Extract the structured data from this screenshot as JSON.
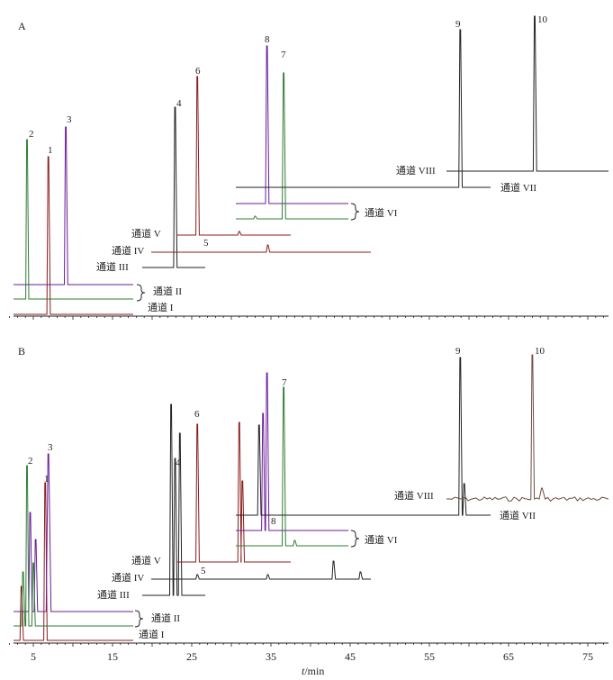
{
  "figure": {
    "xlabel_italic": "t",
    "xlabel_rest": "/min"
  },
  "chart_data": [
    {
      "type": "line",
      "panel": "A",
      "channels": [
        {
          "label": "通道 I",
          "channel": "I",
          "x_offset": 0,
          "baseline": 0.0,
          "color": "#8b1c1c",
          "peaks": [
            {
              "id": "1",
              "rt": 6.9,
              "height": 1.0
            }
          ]
        },
        {
          "label": "通道 II",
          "channel": "II",
          "x_offset": 0,
          "baseline": 0.5,
          "color": "#8b1c1c",
          "peaks": [
            {
              "id": "3",
              "rt": 9.1,
              "height": 1.0
            }
          ],
          "group": "A1"
        },
        {
          "label": "通道 II",
          "channel": "II",
          "x_offset": 0,
          "baseline": 0.32,
          "color": "#2e7d32",
          "peaks": [
            {
              "id": "2",
              "rt": 4.2,
              "height": 1.0
            }
          ],
          "group": "A1"
        },
        {
          "label": "通道 III",
          "channel": "III",
          "x_offset": 0,
          "baseline": 0.0,
          "color": "#222222",
          "peaks": [
            {
              "id": "4",
              "rt": 22.9,
              "height": 1.0
            }
          ]
        },
        {
          "label": "通道 IV",
          "channel": "IV",
          "x_offset": 0,
          "baseline": 0.0,
          "color": "#8b1c1c",
          "peaks": [
            {
              "id": "5",
              "rt": 34.6,
              "height": 0.05
            }
          ]
        },
        {
          "label": "通道 V",
          "channel": "V",
          "x_offset": 0,
          "baseline": 0.0,
          "color": "#8b1c1c",
          "peaks": [
            {
              "id": "6",
              "rt": 25.7,
              "height": 1.0
            }
          ]
        },
        {
          "label": "通道 VI",
          "channel": "VI",
          "x_offset": 0,
          "baseline": 0.0,
          "color": "#6a1b9a",
          "peaks": [
            {
              "id": "8",
              "rt": 34.5,
              "height": 1.0
            }
          ],
          "group": "A2"
        },
        {
          "label": "通道 VI",
          "channel": "VI",
          "x_offset": 0,
          "baseline": 0.0,
          "color": "#2e7d32",
          "peaks": [
            {
              "id": "7",
              "rt": 36.6,
              "height": 1.0
            }
          ],
          "group": "A2"
        },
        {
          "label": "通道 VII",
          "channel": "VII",
          "x_offset": 0,
          "baseline": 0.0,
          "color": "#222222",
          "peaks": [
            {
              "id": "9",
              "rt": 58.9,
              "height": 1.0
            }
          ]
        },
        {
          "label": "通道 VIII",
          "channel": "VIII",
          "x_offset": 0,
          "baseline": 0.0,
          "color": "#222222",
          "peaks": [
            {
              "id": "10",
              "rt": 68.3,
              "height": 1.0
            }
          ]
        }
      ],
      "xlim": [
        2,
        77
      ]
    },
    {
      "type": "line",
      "panel": "B",
      "channels": [
        {
          "label": "通道 I",
          "channel": "I",
          "color": "#8b1c1c",
          "peaks": [
            {
              "id": "1",
              "rt": 6.5,
              "height": 1.0
            }
          ]
        },
        {
          "label": "通道 II",
          "channel": "II",
          "color": "#6a1b9a",
          "peaks": [
            {
              "id": "3",
              "rt": 6.9,
              "height": 1.0
            }
          ],
          "group": "B1"
        },
        {
          "label": "通道 II",
          "channel": "II",
          "color": "#2e7d32",
          "peaks": [
            {
              "id": "2",
              "rt": 4.2,
              "height": 1.0
            }
          ],
          "group": "B1"
        },
        {
          "label": "通道 III",
          "channel": "III",
          "color": "#222222",
          "peaks": [
            {
              "id": "4",
              "rt": 22.9,
              "height": 1.0
            }
          ]
        },
        {
          "label": "通道 IV",
          "channel": "IV",
          "color": "#222222",
          "peaks": [
            {
              "id": "5",
              "rt": 42.9,
              "height": 0.15
            }
          ]
        },
        {
          "label": "通道 V",
          "channel": "V",
          "color": "#8b1c1c",
          "peaks": [
            {
              "id": "6",
              "rt": 25.7,
              "height": 1.0
            }
          ]
        },
        {
          "label": "通道 VI",
          "channel": "VI",
          "color": "#6a1b9a",
          "peaks": [
            {
              "id": "8",
              "rt": 34.5,
              "height": 1.0
            }
          ],
          "group": "B2"
        },
        {
          "label": "通道 VI",
          "channel": "VI",
          "color": "#2e7d32",
          "peaks": [
            {
              "id": "7",
              "rt": 36.6,
              "height": 1.0
            }
          ],
          "group": "B2"
        },
        {
          "label": "通道 VII",
          "channel": "VII",
          "color": "#222222",
          "peaks": [
            {
              "id": "9",
              "rt": 58.9,
              "height": 1.0
            }
          ]
        },
        {
          "label": "通道 VIII",
          "channel": "VIII",
          "color": "#6d4c41",
          "peaks": [
            {
              "id": "10",
              "rt": 68.0,
              "height": 1.0
            }
          ]
        }
      ],
      "xlim": [
        2,
        77
      ],
      "xticks": [
        5,
        15,
        25,
        35,
        45,
        55,
        65,
        75
      ]
    }
  ],
  "panels": [
    {
      "title": "A",
      "channel_labels": {
        "I": "通道 I",
        "II": "通道 II",
        "III": "通道 III",
        "IV": "通道 IV",
        "V": "通道 V",
        "VI": "通道 VI",
        "VII": "通道 VII",
        "VIII": "通道 VIII"
      },
      "peak_labels": [
        "1",
        "2",
        "3",
        "4",
        "5",
        "6",
        "7",
        "8",
        "9",
        "10"
      ]
    },
    {
      "title": "B",
      "channel_labels": {
        "I": "通道 I",
        "II": "通道 II",
        "III": "通道 III",
        "IV": "通道 IV",
        "V": "通道 V",
        "VI": "通道 VI",
        "VII": "通道 VII",
        "VIII": "通道 VIII"
      },
      "peak_labels": [
        "1",
        "2",
        "3",
        "4",
        "5",
        "6",
        "7",
        "8",
        "9",
        "10"
      ],
      "tick_labels": [
        "5",
        "15",
        "25",
        "35",
        "45",
        "55",
        "65",
        "75"
      ]
    }
  ]
}
